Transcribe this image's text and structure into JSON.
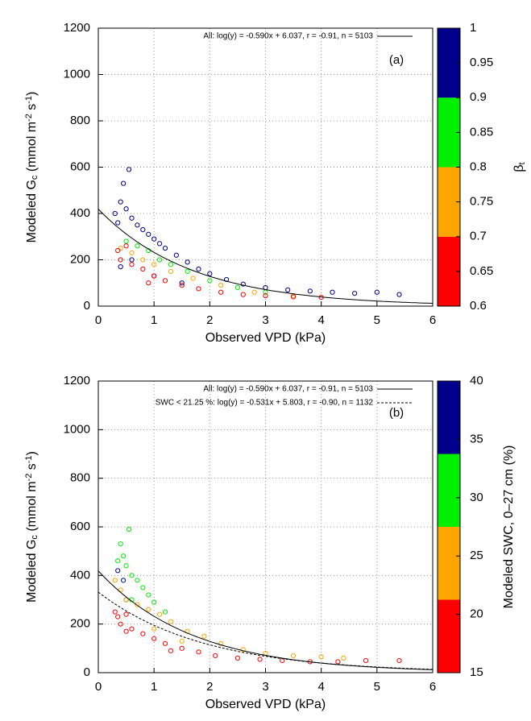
{
  "chart_data": [
    {
      "type": "scatter",
      "panel_label": "(a)",
      "xlabel": "Observed VPD (kPa)",
      "ylabel": [
        "Modeled G",
        "c",
        " (mmol m",
        "-2",
        " s",
        "-1",
        ")"
      ],
      "xlim": [
        0,
        6
      ],
      "xticks": [
        0,
        1,
        2,
        3,
        4,
        5,
        6
      ],
      "ylim": [
        0,
        1200
      ],
      "yticks": [
        0,
        200,
        400,
        600,
        800,
        1000,
        1200
      ],
      "grid": true,
      "series": [
        {
          "color": "#00008b",
          "x": [
            0.3,
            0.35,
            0.4,
            0.45,
            0.5,
            0.55,
            0.6,
            0.7,
            0.8,
            0.9,
            1.0,
            1.1,
            1.2,
            1.4,
            1.6,
            1.8,
            2.0,
            2.3,
            2.6,
            3.0,
            3.4,
            3.8,
            4.2,
            4.6,
            5.0,
            5.4,
            0.4,
            0.6,
            1.0,
            1.5
          ],
          "values": [
            400,
            360,
            450,
            530,
            420,
            590,
            380,
            350,
            330,
            310,
            290,
            270,
            250,
            220,
            190,
            160,
            140,
            115,
            95,
            80,
            70,
            65,
            60,
            55,
            60,
            50,
            170,
            200,
            130,
            100
          ]
        },
        {
          "color": "#00ee00",
          "x": [
            0.5,
            0.7,
            0.9,
            1.1,
            1.3,
            1.6,
            2.0,
            2.5,
            3.0
          ],
          "values": [
            280,
            260,
            240,
            200,
            180,
            150,
            110,
            80,
            60
          ]
        },
        {
          "color": "#ffa500",
          "x": [
            0.4,
            0.6,
            0.8,
            1.0,
            1.3,
            1.7,
            2.2,
            2.8,
            3.5
          ],
          "values": [
            250,
            230,
            200,
            180,
            150,
            120,
            90,
            60,
            45
          ]
        },
        {
          "color": "#ff0000",
          "x": [
            0.35,
            0.4,
            0.5,
            0.6,
            0.8,
            1.0,
            1.2,
            1.5,
            1.8,
            2.2,
            2.6,
            3.0,
            3.5,
            4.0,
            0.9
          ],
          "values": [
            240,
            200,
            260,
            180,
            160,
            130,
            110,
            90,
            75,
            60,
            50,
            45,
            40,
            38,
            100
          ]
        }
      ],
      "fits": [
        {
          "label": "All: log(y) = -0.590x + 6.037, r = -0.91, n = 5103",
          "slope": -0.59,
          "intercept": 6.037,
          "dash": false
        }
      ],
      "colorbar": {
        "label": [
          "β",
          "t"
        ],
        "lim": [
          0.6,
          1
        ],
        "ticks": [
          0.6,
          0.65,
          0.7,
          0.75,
          0.8,
          0.85,
          0.9,
          0.95,
          1
        ],
        "bands": [
          {
            "from": 0.6,
            "to": 0.7,
            "color": "#ff0000"
          },
          {
            "from": 0.7,
            "to": 0.8,
            "color": "#ffa500"
          },
          {
            "from": 0.8,
            "to": 0.9,
            "color": "#00ee00"
          },
          {
            "from": 0.9,
            "to": 1,
            "color": "#00008b"
          }
        ]
      }
    },
    {
      "type": "scatter",
      "panel_label": "(b)",
      "xlabel": "Observed VPD (kPa)",
      "ylabel": [
        "Modeled G",
        "c",
        " (mmol m",
        "-2",
        " s",
        "-1",
        ")"
      ],
      "xlim": [
        0,
        6
      ],
      "xticks": [
        0,
        1,
        2,
        3,
        4,
        5,
        6
      ],
      "ylim": [
        0,
        1200
      ],
      "yticks": [
        0,
        200,
        400,
        600,
        800,
        1000,
        1200
      ],
      "grid": true,
      "series": [
        {
          "color": "#00008b",
          "x": [
            0.35,
            0.45,
            0.5
          ],
          "values": [
            420,
            380,
            300
          ]
        },
        {
          "color": "#00ee00",
          "x": [
            0.35,
            0.4,
            0.45,
            0.5,
            0.55,
            0.6,
            0.7,
            0.8,
            0.9,
            1.0,
            1.2,
            0.6
          ],
          "values": [
            460,
            530,
            480,
            440,
            590,
            400,
            380,
            350,
            320,
            290,
            250,
            300
          ]
        },
        {
          "color": "#ffa500",
          "x": [
            0.3,
            0.4,
            0.5,
            0.7,
            0.9,
            1.1,
            1.3,
            1.6,
            1.9,
            2.2,
            2.6,
            3.0,
            3.5,
            4.0,
            4.4,
            1.0,
            1.5
          ],
          "values": [
            380,
            340,
            300,
            280,
            260,
            240,
            210,
            170,
            150,
            120,
            95,
            80,
            70,
            65,
            60,
            180,
            130
          ]
        },
        {
          "color": "#ff0000",
          "x": [
            0.3,
            0.35,
            0.4,
            0.5,
            0.6,
            0.8,
            1.0,
            1.2,
            1.5,
            1.8,
            2.1,
            2.5,
            2.9,
            3.3,
            3.8,
            4.3,
            4.8,
            5.4,
            0.5,
            1.3
          ],
          "values": [
            250,
            230,
            200,
            240,
            180,
            160,
            140,
            120,
            100,
            85,
            70,
            60,
            55,
            50,
            45,
            45,
            50,
            50,
            170,
            90
          ]
        }
      ],
      "fits": [
        {
          "label": "All: log(y) = -0.590x + 6.037, r = -0.91, n = 5103",
          "slope": -0.59,
          "intercept": 6.037,
          "dash": false
        },
        {
          "label": "SWC < 21.25 %: log(y) = -0.531x + 5.803, r = -0.90, n = 1132",
          "slope": -0.531,
          "intercept": 5.803,
          "dash": true
        }
      ],
      "colorbar": {
        "label": [
          "Modeled SWC, 0–27 cm (%)"
        ],
        "lim": [
          15,
          40
        ],
        "ticks": [
          15,
          20,
          25,
          30,
          35,
          40
        ],
        "bands": [
          {
            "from": 15,
            "to": 21.25,
            "color": "#ff0000"
          },
          {
            "from": 21.25,
            "to": 27.5,
            "color": "#ffa500"
          },
          {
            "from": 27.5,
            "to": 33.75,
            "color": "#00ee00"
          },
          {
            "from": 33.75,
            "to": 40,
            "color": "#00008b"
          }
        ]
      }
    }
  ]
}
